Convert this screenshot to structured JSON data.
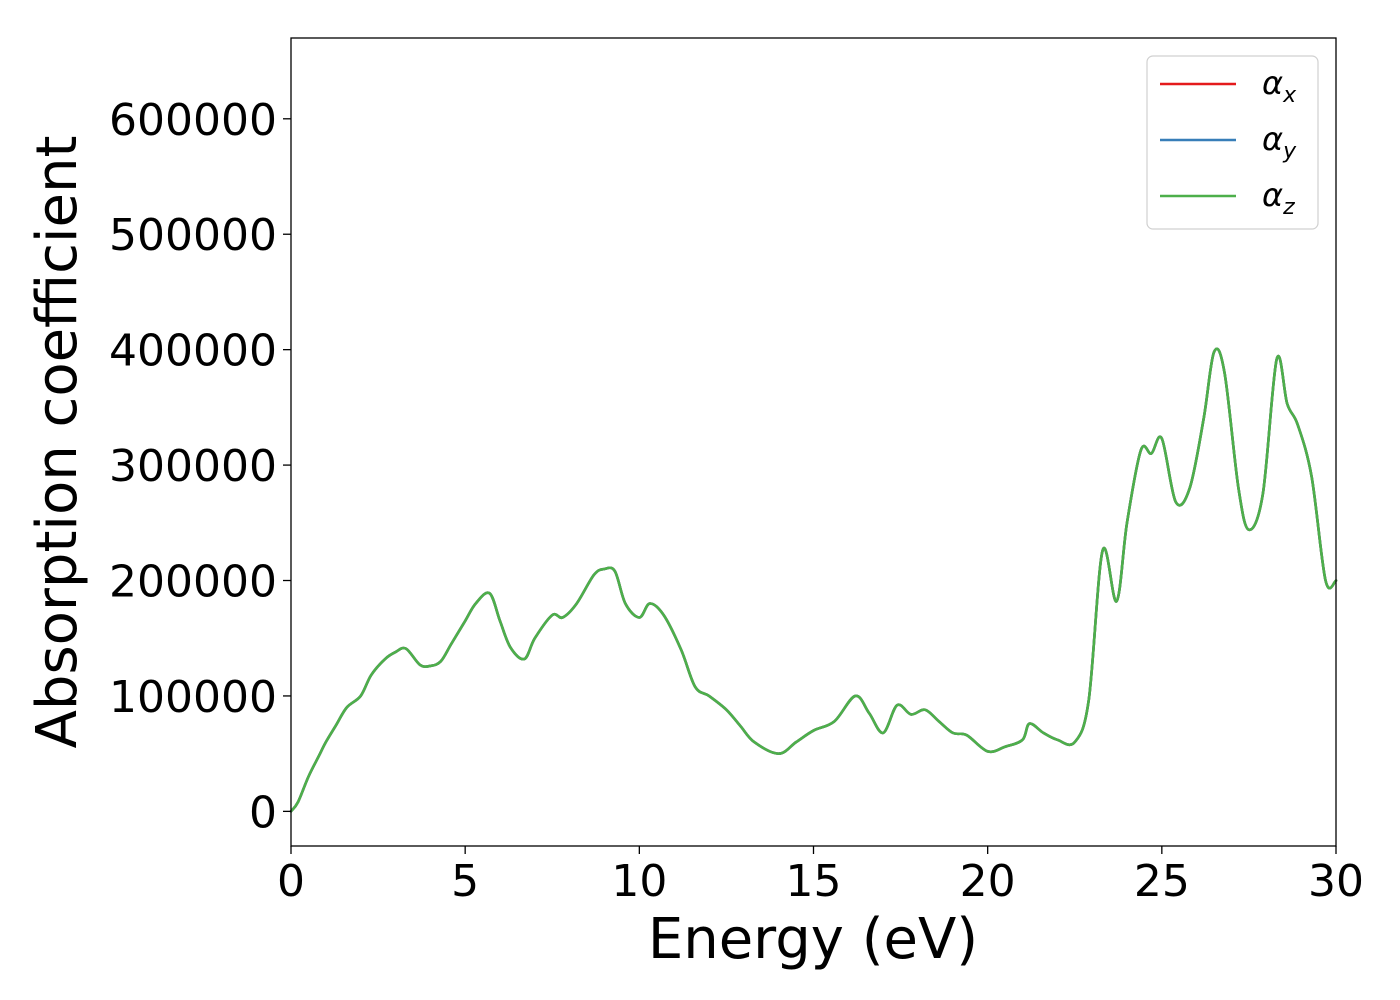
{
  "chart_data": {
    "type": "line",
    "title": "",
    "xlabel": "Energy (eV)",
    "ylabel": "Absorption coefficient",
    "xlim": [
      0,
      30
    ],
    "ylim": [
      -30000,
      670000
    ],
    "xticks": [
      0,
      5,
      10,
      15,
      20,
      25,
      30
    ],
    "xtick_labels": [
      "0",
      "5",
      "10",
      "15",
      "20",
      "25",
      "30"
    ],
    "yticks": [
      0,
      100000,
      200000,
      300000,
      400000,
      500000,
      600000
    ],
    "ytick_labels": [
      "0",
      "100000",
      "200000",
      "300000",
      "400000",
      "500000",
      "600000"
    ],
    "grid": false,
    "legend_position": "top-right",
    "x": [
      0,
      0.2,
      0.5,
      0.8,
      1.0,
      1.3,
      1.6,
      2.0,
      2.3,
      2.7,
      3.0,
      3.3,
      3.7,
      4.0,
      4.3,
      4.6,
      5.0,
      5.3,
      5.7,
      6.0,
      6.3,
      6.7,
      7.0,
      7.5,
      7.8,
      8.2,
      8.7,
      9.0,
      9.3,
      9.6,
      10.0,
      10.3,
      10.7,
      11.2,
      11.6,
      12.0,
      12.5,
      12.9,
      13.3,
      14.0,
      14.5,
      15.0,
      15.6,
      16.2,
      16.6,
      17.0,
      17.4,
      17.8,
      18.2,
      18.6,
      19.0,
      19.4,
      20.0,
      20.5,
      21.0,
      21.2,
      21.6,
      22.0,
      22.5,
      22.9,
      23.3,
      23.7,
      24.0,
      24.4,
      24.7,
      25.0,
      25.4,
      25.8,
      26.2,
      26.5,
      26.8,
      27.2,
      27.5,
      27.9,
      28.3,
      28.6,
      28.9,
      29.3,
      29.7,
      30.0
    ],
    "series": [
      {
        "name": "αx",
        "color": "#e41a1c",
        "values": [
          0,
          8000,
          30000,
          48000,
          60000,
          75000,
          90000,
          100000,
          118000,
          132000,
          138000,
          141000,
          127000,
          126000,
          130000,
          145000,
          165000,
          180000,
          189000,
          165000,
          142000,
          132000,
          150000,
          170000,
          168000,
          180000,
          205000,
          210000,
          208000,
          180000,
          168000,
          180000,
          170000,
          140000,
          108000,
          100000,
          88000,
          74000,
          60000,
          50000,
          60000,
          70000,
          78000,
          100000,
          85000,
          68000,
          92000,
          84000,
          88000,
          78000,
          68000,
          66000,
          52000,
          56000,
          62000,
          76000,
          68000,
          62000,
          60000,
          96000,
          226000,
          182000,
          250000,
          313000,
          310000,
          323000,
          268000,
          280000,
          340000,
          398000,
          380000,
          280000,
          244000,
          275000,
          392000,
          353000,
          335000,
          290000,
          200000,
          200000
        ]
      },
      {
        "name": "αy",
        "color": "#377eb8",
        "values": [
          0,
          8000,
          30000,
          48000,
          60000,
          75000,
          90000,
          100000,
          118000,
          132000,
          138000,
          141000,
          127000,
          126000,
          130000,
          145000,
          165000,
          180000,
          189000,
          165000,
          142000,
          132000,
          150000,
          170000,
          168000,
          180000,
          205000,
          210000,
          208000,
          180000,
          168000,
          180000,
          170000,
          140000,
          108000,
          100000,
          88000,
          74000,
          60000,
          50000,
          60000,
          70000,
          78000,
          100000,
          85000,
          68000,
          92000,
          84000,
          88000,
          78000,
          68000,
          66000,
          52000,
          56000,
          62000,
          76000,
          68000,
          62000,
          60000,
          96000,
          226000,
          182000,
          250000,
          313000,
          310000,
          323000,
          268000,
          280000,
          340000,
          398000,
          380000,
          280000,
          244000,
          275000,
          392000,
          353000,
          335000,
          290000,
          200000,
          200000
        ]
      },
      {
        "name": "αz",
        "color": "#4daf4a",
        "values": [
          0,
          8000,
          30000,
          48000,
          60000,
          75000,
          90000,
          100000,
          118000,
          132000,
          138000,
          141000,
          127000,
          126000,
          130000,
          145000,
          165000,
          180000,
          189000,
          165000,
          142000,
          132000,
          150000,
          170000,
          168000,
          180000,
          205000,
          210000,
          208000,
          180000,
          168000,
          180000,
          170000,
          140000,
          108000,
          100000,
          88000,
          74000,
          60000,
          50000,
          60000,
          70000,
          78000,
          100000,
          85000,
          68000,
          92000,
          84000,
          88000,
          78000,
          68000,
          66000,
          52000,
          56000,
          62000,
          76000,
          68000,
          62000,
          60000,
          96000,
          226000,
          182000,
          250000,
          313000,
          310000,
          323000,
          268000,
          280000,
          340000,
          398000,
          380000,
          280000,
          244000,
          275000,
          392000,
          353000,
          335000,
          290000,
          200000,
          200000
        ]
      }
    ],
    "legend": [
      {
        "base": "α",
        "sub": "x",
        "color": "#e41a1c"
      },
      {
        "base": "α",
        "sub": "y",
        "color": "#377eb8"
      },
      {
        "base": "α",
        "sub": "z",
        "color": "#4daf4a"
      }
    ]
  }
}
